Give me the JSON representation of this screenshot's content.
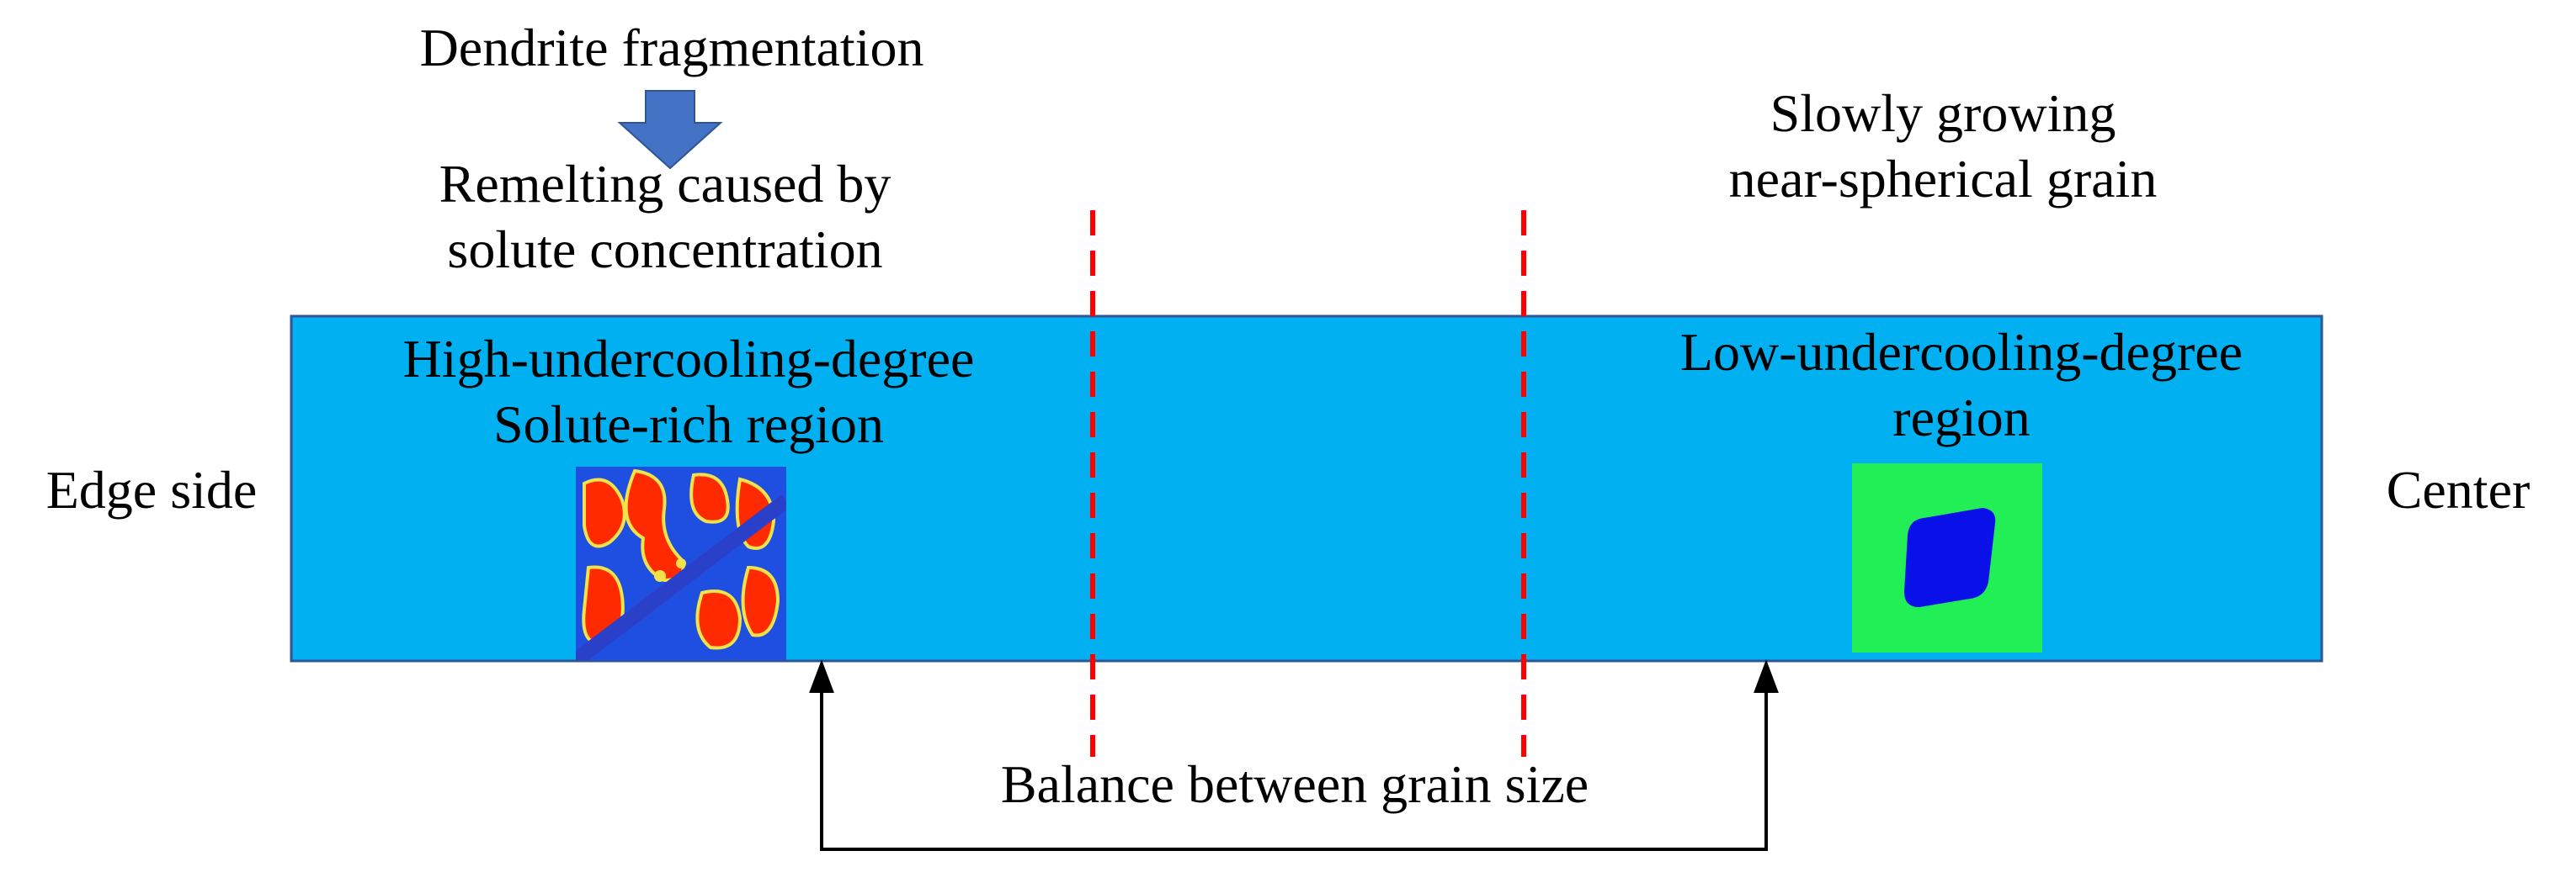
{
  "top_left": {
    "dendrite_fragmentation": "Dendrite fragmentation",
    "remelting_line1": "Remelting caused by",
    "remelting_line2": "solute concentration"
  },
  "top_right": {
    "line1": "Slowly growing",
    "line2": "near-spherical grain"
  },
  "bar": {
    "left_region_line1": "High-undercooling-degree",
    "left_region_line2": "Solute-rich region",
    "right_region_line1": "Low-undercooling-degree",
    "right_region_line2": "region",
    "edge_label": "Edge side",
    "center_label": "Center"
  },
  "bottom": {
    "balance_label": "Balance between grain size"
  },
  "colors": {
    "bar_fill": "#00b0f0",
    "bar_border": "#2f5597",
    "divider": "#ff0000",
    "down_arrow": "#4472c4",
    "dendrite_red": "#ff2a00",
    "dendrite_blue": "#1f4fe0",
    "grain_background": "#22ee55",
    "grain": "#0a10e8"
  },
  "icons": {
    "down_arrow": "down-arrow-icon",
    "connector_arrows": "double-headed-bracket-arrow"
  }
}
